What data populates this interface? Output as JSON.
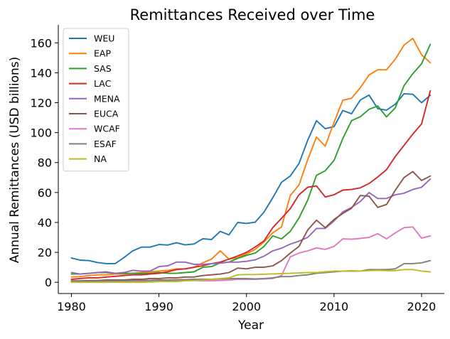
{
  "chart_data": {
    "type": "line",
    "title": "Remittances Received over Time",
    "xlabel": "Year",
    "ylabel": "Annual Remittances (USD billions)",
    "xlim": [
      1978.5,
      2022.6
    ],
    "ylim": [
      -7.5,
      172
    ],
    "xticks": [
      1980,
      1990,
      2000,
      2010,
      2020
    ],
    "yticks": [
      0,
      20,
      40,
      60,
      80,
      100,
      120,
      140,
      160
    ],
    "legend_position": "top-left",
    "grid": false,
    "x": [
      1980,
      1981,
      1982,
      1983,
      1984,
      1985,
      1986,
      1987,
      1988,
      1989,
      1990,
      1991,
      1992,
      1993,
      1994,
      1995,
      1996,
      1997,
      1998,
      1999,
      2000,
      2001,
      2002,
      2003,
      2004,
      2005,
      2006,
      2007,
      2008,
      2009,
      2010,
      2011,
      2012,
      2013,
      2014,
      2015,
      2016,
      2017,
      2018,
      2019,
      2020,
      2021
    ],
    "series": [
      {
        "name": "WEU",
        "color": "#1f77b4",
        "values": [
          16.2,
          14.8,
          14.5,
          13.2,
          12.5,
          12.5,
          16.5,
          21,
          23.5,
          23.5,
          25.2,
          24.9,
          26.4,
          25,
          25.6,
          29.1,
          28.6,
          34,
          31.7,
          40,
          39.3,
          40.2,
          46.9,
          56.5,
          66.8,
          71,
          79.4,
          95,
          108,
          102.6,
          104,
          114.8,
          112.6,
          121.8,
          125.1,
          116,
          115,
          119,
          126,
          125.6,
          120,
          125
        ]
      },
      {
        "name": "EAP",
        "color": "#ff7f0e",
        "values": [
          3.5,
          3.8,
          4.5,
          5,
          5,
          5.5,
          5.5,
          6,
          6.5,
          7,
          7.5,
          8,
          9,
          9,
          10,
          13,
          15.5,
          21,
          15.5,
          16.5,
          19,
          22,
          27,
          33,
          37,
          58,
          65,
          82,
          97,
          91,
          107,
          121.6,
          123,
          130,
          138.5,
          142,
          142,
          149,
          158.5,
          163,
          152,
          146.7
        ]
      },
      {
        "name": "SAS",
        "color": "#2ca02c",
        "values": [
          5.5,
          5.5,
          6,
          6.5,
          6.5,
          6,
          6,
          6,
          5.8,
          6,
          6.5,
          6,
          6,
          6.5,
          7,
          10,
          10.5,
          13,
          13.5,
          16,
          18,
          19.5,
          24,
          31,
          29,
          34,
          43,
          55,
          71.5,
          74.5,
          81.5,
          96,
          108,
          110.6,
          115.6,
          117.8,
          110.5,
          116.6,
          131.5,
          139.4,
          146,
          159
        ]
      },
      {
        "name": "LAC",
        "color": "#d62728",
        "values": [
          2,
          2.5,
          3,
          3,
          3.5,
          4,
          4.5,
          5,
          5,
          5.5,
          6,
          7,
          8.5,
          9,
          10,
          11,
          12.5,
          13.5,
          15.5,
          17.6,
          20,
          23.6,
          27.7,
          36.5,
          42.8,
          49.2,
          58.5,
          63.5,
          64.4,
          57,
          58.5,
          61.6,
          62,
          63.1,
          66,
          70.4,
          75.3,
          84,
          91.5,
          99,
          105.8,
          128
        ]
      },
      {
        "name": "MENA",
        "color": "#9467bd",
        "values": [
          6.5,
          5.5,
          6,
          6.5,
          7,
          6,
          6.5,
          8,
          7.5,
          7.5,
          10.5,
          11,
          13.5,
          13.5,
          12,
          12,
          12.5,
          12.8,
          13.5,
          13.5,
          14,
          15,
          17.5,
          21,
          22.8,
          25.5,
          27.5,
          30,
          36,
          36,
          41,
          47,
          50,
          54,
          60,
          56,
          56,
          58.5,
          59.5,
          62,
          63.5,
          69
        ]
      },
      {
        "name": "EUCA",
        "color": "#8c564b",
        "values": [
          1,
          1,
          1.2,
          1.2,
          1.5,
          1.5,
          1.5,
          2,
          2,
          2.5,
          2.5,
          3,
          3,
          3.5,
          3.5,
          4.5,
          5,
          5.5,
          6.5,
          9.5,
          9,
          10,
          10,
          11,
          14.5,
          19.5,
          24,
          35,
          41.5,
          36.5,
          42,
          46,
          49.5,
          58,
          57.5,
          50,
          52,
          61.5,
          70,
          74,
          68,
          71
        ]
      },
      {
        "name": "WCAF",
        "color": "#e377c2",
        "values": [
          0.5,
          0.5,
          0.5,
          0.5,
          0.5,
          0.5,
          0.6,
          0.6,
          0.7,
          0.8,
          1,
          1,
          1,
          1.2,
          1.2,
          1,
          1,
          1.2,
          1.5,
          2,
          2,
          2,
          2.3,
          2.5,
          4.5,
          17,
          19.5,
          21,
          23,
          22,
          24,
          29,
          28.8,
          29.3,
          30,
          32.5,
          29,
          33,
          36.5,
          37,
          29.5,
          31
        ]
      },
      {
        "name": "ESAF",
        "color": "#7f7f7f",
        "values": [
          0.8,
          0.8,
          0.8,
          0.8,
          1,
          1,
          1,
          1.2,
          1.2,
          1.3,
          1.5,
          1.5,
          1.7,
          1.8,
          2,
          2,
          2,
          2.2,
          2.5,
          2.5,
          2.5,
          2.3,
          2.5,
          3,
          3.8,
          3.8,
          4.5,
          5,
          6,
          6.5,
          7,
          7.5,
          7.5,
          7.5,
          8.5,
          8.5,
          8.5,
          9,
          12.5,
          12.5,
          13,
          14.5
        ]
      },
      {
        "name": "NA",
        "color": "#bcbd22",
        "values": [
          0,
          0,
          0,
          0,
          0,
          0,
          0,
          0,
          0,
          0.2,
          0.5,
          0.5,
          0.5,
          1,
          1.2,
          1.5,
          2,
          2.5,
          3,
          5,
          5.2,
          5.2,
          5.4,
          5.6,
          5.8,
          6,
          6.2,
          6.5,
          6.5,
          7,
          7.5,
          7.5,
          7.8,
          7.5,
          7.8,
          8,
          7.8,
          7.8,
          8.5,
          8.5,
          7.5,
          7
        ]
      }
    ]
  }
}
